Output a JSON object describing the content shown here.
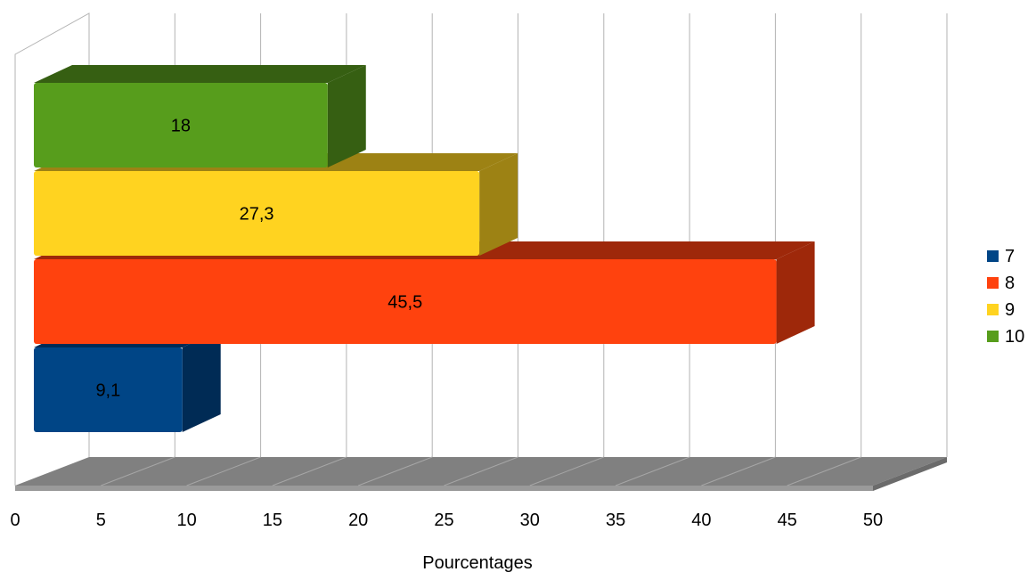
{
  "chart_data": {
    "type": "bar",
    "orientation": "horizontal",
    "three_d": true,
    "title": "",
    "xlabel": "Pourcentages",
    "ylabel": "",
    "xlim": [
      0,
      50
    ],
    "x_ticks": [
      "0",
      "5",
      "10",
      "15",
      "20",
      "25",
      "30",
      "35",
      "40",
      "45",
      "50"
    ],
    "grid": true,
    "legend_position": "right",
    "series": [
      {
        "name": "7",
        "value": 9.1,
        "label": "9,1",
        "color": "#004586",
        "side_color": "#002B55"
      },
      {
        "name": "8",
        "value": 45.5,
        "label": "45,5",
        "color": "#FF420E",
        "side_color": "#9E280A"
      },
      {
        "name": "9",
        "value": 27.3,
        "label": "27,3",
        "color": "#FFD320",
        "side_color": "#9D8214"
      },
      {
        "name": "10",
        "value": 18,
        "label": "18",
        "color": "#579D1C",
        "side_color": "#365F12"
      }
    ]
  }
}
